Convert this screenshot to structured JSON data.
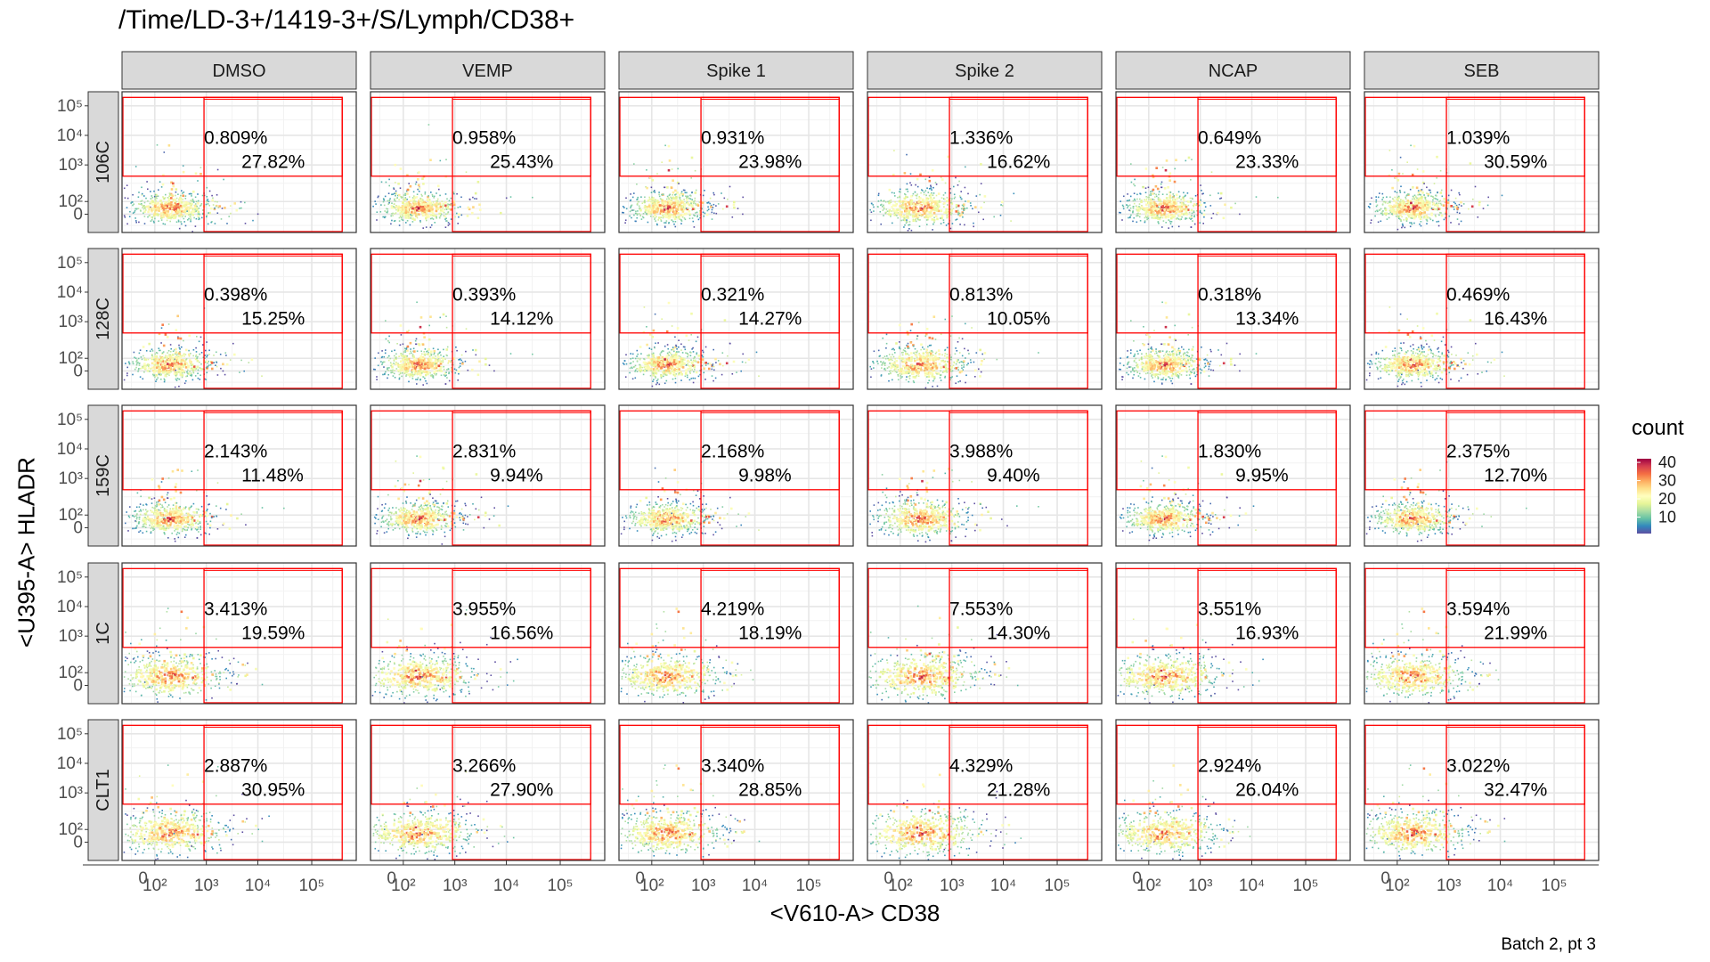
{
  "chart_data": {
    "type": "heatmap",
    "title": "/Time/LD-3+/1419-3+/S/Lymph/CD38+",
    "xlabel": "<V610-A> CD38",
    "ylabel": "<U395-A> HLADR",
    "caption": "Batch 2, pt 3",
    "x_tick_labels": [
      "0",
      "10²",
      "10³",
      "10⁴",
      "10⁵"
    ],
    "y_tick_labels": [
      "10⁵",
      "10⁴",
      "10³",
      "10²",
      "0"
    ],
    "legend": {
      "title": "count",
      "placement": "right",
      "ticks": [
        40,
        30,
        20,
        10
      ],
      "range": [
        1,
        42
      ],
      "colors": [
        "#5e4fa2",
        "#3288bd",
        "#66c2a5",
        "#abdda4",
        "#e6f598",
        "#ffffbf",
        "#fee08b",
        "#fdae61",
        "#f46d43",
        "#d53e4f",
        "#9e0142"
      ]
    },
    "gate_color": "#ff0000",
    "columns": [
      "DMSO",
      "VEMP",
      "Spike 1",
      "Spike 2",
      "NCAP",
      "SEB"
    ],
    "rows": [
      "106C",
      "128C",
      "159C",
      "1C",
      "CLT1"
    ],
    "gate_percentages": [
      [
        [
          "0.809%",
          "27.82%"
        ],
        [
          "0.958%",
          "25.43%"
        ],
        [
          "0.931%",
          "23.98%"
        ],
        [
          "1.336%",
          "16.62%"
        ],
        [
          "0.649%",
          "23.33%"
        ],
        [
          "1.039%",
          "30.59%"
        ]
      ],
      [
        [
          "0.398%",
          "15.25%"
        ],
        [
          "0.393%",
          "14.12%"
        ],
        [
          "0.321%",
          "14.27%"
        ],
        [
          "0.813%",
          "10.05%"
        ],
        [
          "0.318%",
          "13.34%"
        ],
        [
          "0.469%",
          "16.43%"
        ]
      ],
      [
        [
          "2.143%",
          "11.48%"
        ],
        [
          "2.831%",
          "9.94%"
        ],
        [
          "2.168%",
          "9.98%"
        ],
        [
          "3.988%",
          "9.40%"
        ],
        [
          "1.830%",
          "9.95%"
        ],
        [
          "2.375%",
          "12.70%"
        ]
      ],
      [
        [
          "3.413%",
          "19.59%"
        ],
        [
          "3.955%",
          "16.56%"
        ],
        [
          "4.219%",
          "18.19%"
        ],
        [
          "7.553%",
          "14.30%"
        ],
        [
          "3.551%",
          "16.93%"
        ],
        [
          "3.594%",
          "21.99%"
        ]
      ],
      [
        [
          "2.887%",
          "30.95%"
        ],
        [
          "3.266%",
          "27.90%"
        ],
        [
          "3.340%",
          "28.85%"
        ],
        [
          "4.329%",
          "21.28%"
        ],
        [
          "2.924%",
          "26.04%"
        ],
        [
          "3.022%",
          "32.47%"
        ]
      ]
    ]
  }
}
